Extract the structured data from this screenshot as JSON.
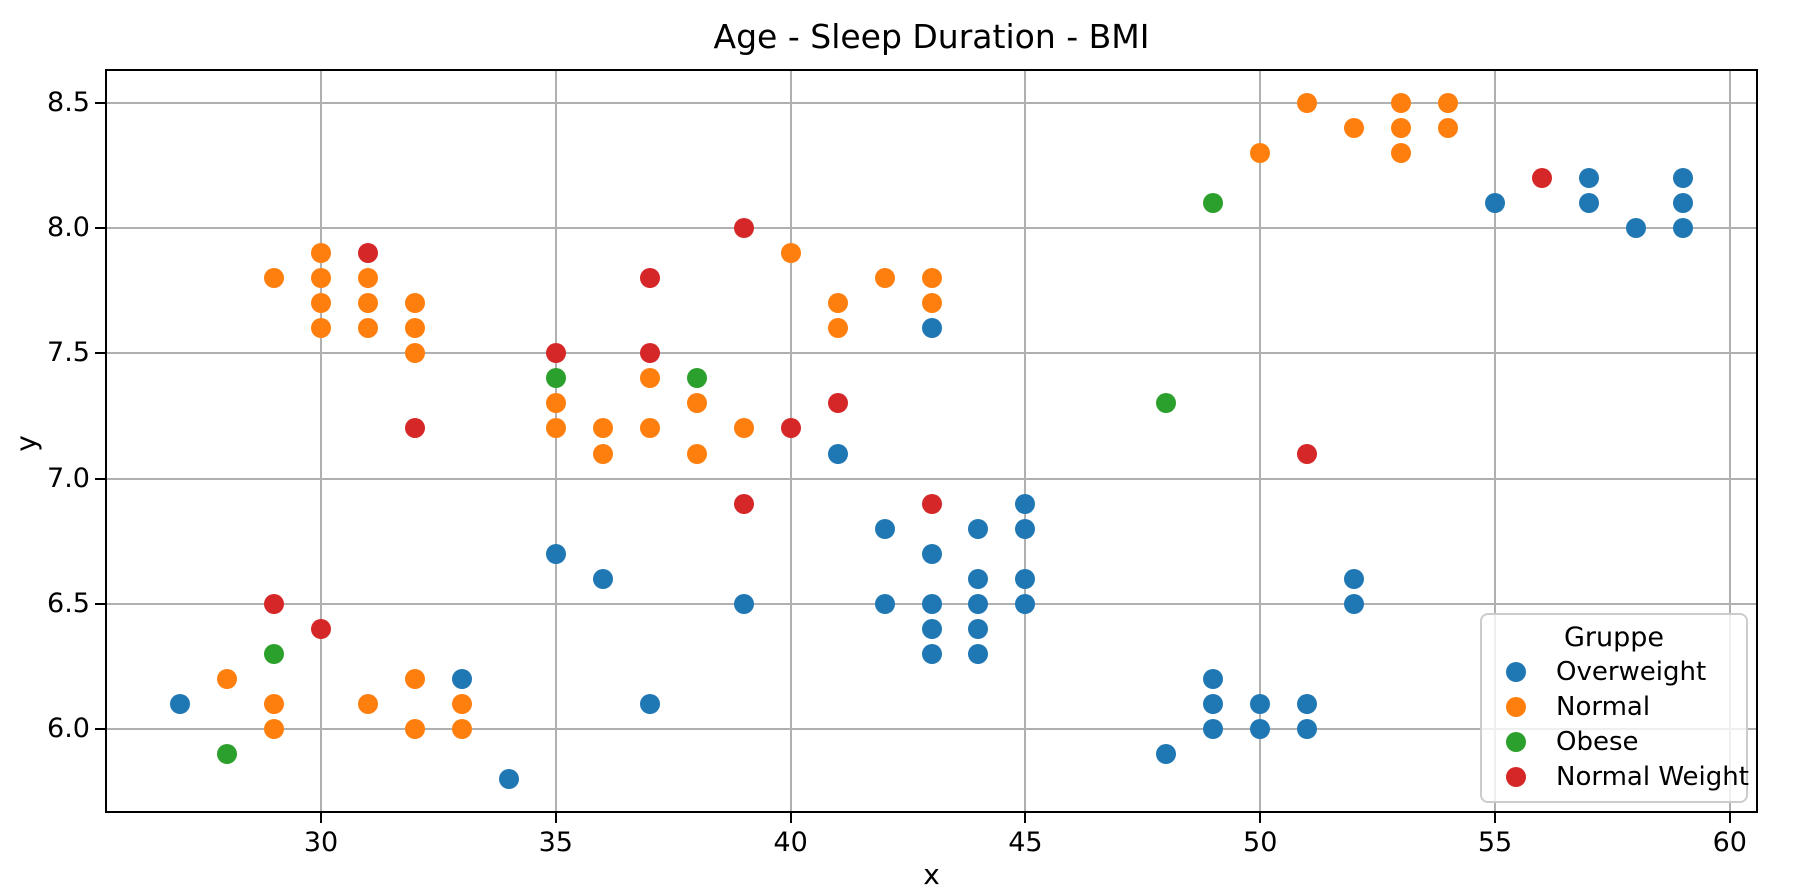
{
  "chart_data": {
    "type": "scatter",
    "title": "Age - Sleep Duration - BMI",
    "xlabel": "x",
    "ylabel": "y",
    "xlim": [
      25.4,
      60.6
    ],
    "ylim": [
      5.665,
      8.635
    ],
    "xticks": [
      30,
      35,
      40,
      45,
      50,
      55,
      60
    ],
    "xtick_labels": [
      "30",
      "35",
      "40",
      "45",
      "50",
      "55",
      "60"
    ],
    "yticks": [
      6.0,
      6.5,
      7.0,
      7.5,
      8.0,
      8.5
    ],
    "ytick_labels": [
      "6.0",
      "6.5",
      "7.0",
      "7.5",
      "8.0",
      "8.5"
    ],
    "grid": true,
    "grid_color": "#b0b0b0",
    "legend": {
      "title": "Gruppe",
      "position": "lower right"
    },
    "series": [
      {
        "name": "Overweight",
        "color": "#1f77b4",
        "points": [
          [
            27,
            6.1
          ],
          [
            33,
            6.2
          ],
          [
            34,
            5.8
          ],
          [
            35,
            6.7
          ],
          [
            36,
            6.6
          ],
          [
            37,
            6.1
          ],
          [
            39,
            6.5
          ],
          [
            41,
            7.1
          ],
          [
            42,
            6.8
          ],
          [
            42,
            6.5
          ],
          [
            43,
            7.6
          ],
          [
            43,
            6.7
          ],
          [
            43,
            6.5
          ],
          [
            43,
            6.4
          ],
          [
            43,
            6.3
          ],
          [
            44,
            6.8
          ],
          [
            44,
            6.6
          ],
          [
            44,
            6.5
          ],
          [
            44,
            6.4
          ],
          [
            44,
            6.3
          ],
          [
            45,
            6.9
          ],
          [
            45,
            6.8
          ],
          [
            45,
            6.6
          ],
          [
            45,
            6.5
          ],
          [
            48,
            5.9
          ],
          [
            49,
            6.2
          ],
          [
            49,
            6.1
          ],
          [
            49,
            6.0
          ],
          [
            50,
            6.1
          ],
          [
            50,
            6.0
          ],
          [
            51,
            6.1
          ],
          [
            51,
            6.0
          ],
          [
            52,
            6.6
          ],
          [
            52,
            6.5
          ],
          [
            55,
            8.1
          ],
          [
            57,
            8.2
          ],
          [
            57,
            8.1
          ],
          [
            58,
            8.0
          ],
          [
            59,
            8.2
          ],
          [
            59,
            8.1
          ],
          [
            59,
            8.0
          ]
        ]
      },
      {
        "name": "Normal",
        "color": "#ff7f0e",
        "points": [
          [
            28,
            6.2
          ],
          [
            29,
            7.8
          ],
          [
            29,
            6.1
          ],
          [
            29,
            6.0
          ],
          [
            30,
            7.9
          ],
          [
            30,
            7.8
          ],
          [
            30,
            7.7
          ],
          [
            30,
            7.6
          ],
          [
            31,
            7.8
          ],
          [
            31,
            7.7
          ],
          [
            31,
            7.6
          ],
          [
            31,
            6.1
          ],
          [
            32,
            7.7
          ],
          [
            32,
            7.6
          ],
          [
            32,
            7.5
          ],
          [
            32,
            6.2
          ],
          [
            32,
            6.0
          ],
          [
            33,
            6.1
          ],
          [
            33,
            6.0
          ],
          [
            35,
            7.3
          ],
          [
            35,
            7.2
          ],
          [
            36,
            7.2
          ],
          [
            36,
            7.1
          ],
          [
            37,
            7.4
          ],
          [
            37,
            7.2
          ],
          [
            38,
            7.3
          ],
          [
            38,
            7.1
          ],
          [
            39,
            7.2
          ],
          [
            40,
            7.9
          ],
          [
            41,
            7.7
          ],
          [
            41,
            7.6
          ],
          [
            42,
            7.8
          ],
          [
            43,
            7.8
          ],
          [
            43,
            7.7
          ],
          [
            50,
            8.3
          ],
          [
            51,
            8.5
          ],
          [
            52,
            8.4
          ],
          [
            53,
            8.5
          ],
          [
            53,
            8.4
          ],
          [
            53,
            8.3
          ],
          [
            54,
            8.5
          ],
          [
            54,
            8.4
          ]
        ]
      },
      {
        "name": "Obese",
        "color": "#2ca02c",
        "points": [
          [
            28,
            5.9
          ],
          [
            29,
            6.3
          ],
          [
            35,
            7.4
          ],
          [
            38,
            7.4
          ],
          [
            48,
            7.3
          ],
          [
            49,
            8.1
          ]
        ]
      },
      {
        "name": "Normal Weight",
        "color": "#d62728",
        "points": [
          [
            29,
            6.5
          ],
          [
            30,
            6.4
          ],
          [
            31,
            7.9
          ],
          [
            32,
            7.2
          ],
          [
            35,
            7.5
          ],
          [
            37,
            7.8
          ],
          [
            37,
            7.5
          ],
          [
            39,
            8.0
          ],
          [
            39,
            6.9
          ],
          [
            40,
            7.2
          ],
          [
            41,
            7.3
          ],
          [
            43,
            6.9
          ],
          [
            51,
            7.1
          ],
          [
            56,
            8.2
          ]
        ]
      }
    ]
  }
}
